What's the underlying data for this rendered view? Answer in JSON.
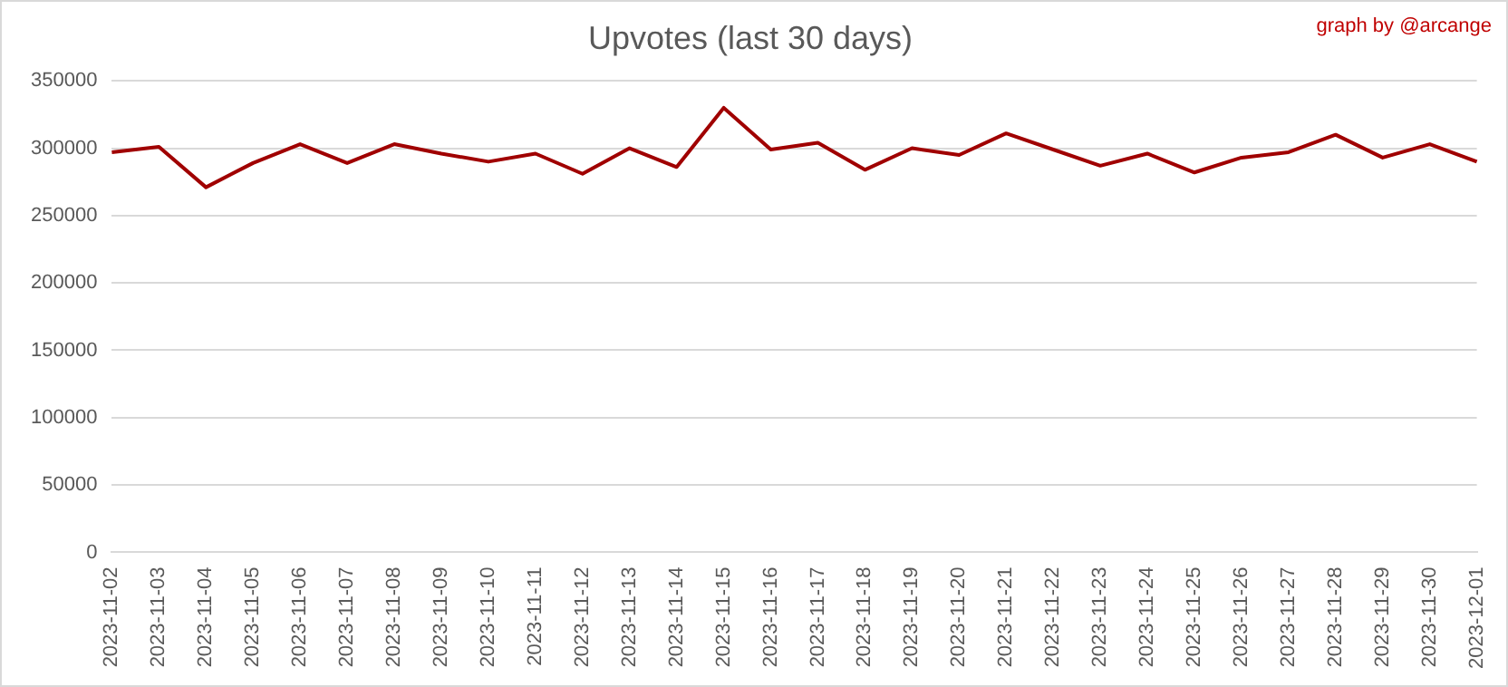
{
  "chart_data": {
    "type": "line",
    "title": "Upvotes (last 30 days)",
    "annotations": [
      "graph by @arcange"
    ],
    "categories": [
      "2023-11-02",
      "2023-11-03",
      "2023-11-04",
      "2023-11-05",
      "2023-11-06",
      "2023-11-07",
      "2023-11-08",
      "2023-11-09",
      "2023-11-10",
      "2023-11-11",
      "2023-11-12",
      "2023-11-13",
      "2023-11-14",
      "2023-11-15",
      "2023-11-16",
      "2023-11-17",
      "2023-11-18",
      "2023-11-19",
      "2023-11-20",
      "2023-11-21",
      "2023-11-22",
      "2023-11-23",
      "2023-11-24",
      "2023-11-25",
      "2023-11-26",
      "2023-11-27",
      "2023-11-28",
      "2023-11-29",
      "2023-11-30",
      "2023-12-01"
    ],
    "series": [
      {
        "color": "#a00000",
        "values": [
          297000,
          301000,
          271000,
          289000,
          303000,
          289000,
          303000,
          296000,
          290000,
          296000,
          281000,
          300000,
          286000,
          330000,
          299000,
          304000,
          284000,
          300000,
          295000,
          311000,
          299000,
          287000,
          296000,
          282000,
          293000,
          297000,
          310000,
          293000,
          303000,
          290000
        ]
      }
    ],
    "ylim": [
      0,
      350000
    ],
    "yticks": [
      0,
      50000,
      100000,
      150000,
      200000,
      250000,
      300000,
      350000
    ],
    "grid": "y",
    "legend": false,
    "marker": "none",
    "line_style": "solid"
  }
}
